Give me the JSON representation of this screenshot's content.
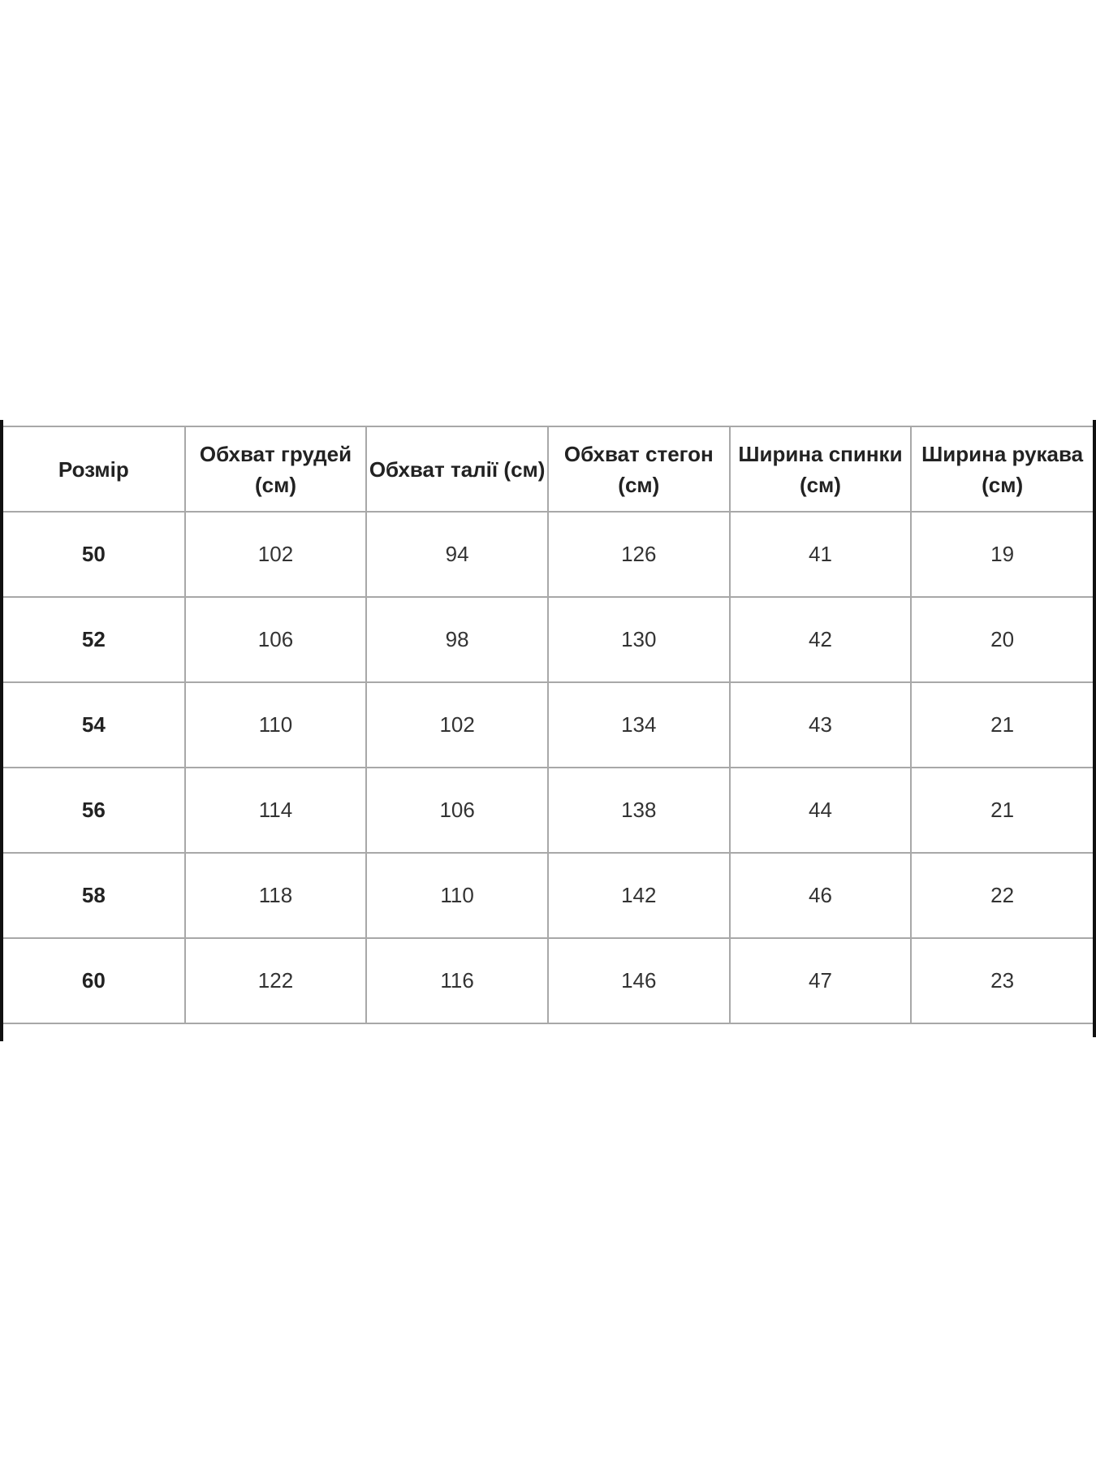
{
  "table": {
    "headers": [
      "Розмір",
      "Обхват грудей (см)",
      "Обхват талії (см)",
      "Обхват стегон (см)",
      "Ширина спинки (см)",
      "Ширина рукава (см)"
    ],
    "rows": [
      [
        "50",
        "102",
        "94",
        "126",
        "41",
        "19"
      ],
      [
        "52",
        "106",
        "98",
        "130",
        "42",
        "20"
      ],
      [
        "54",
        "110",
        "102",
        "134",
        "43",
        "21"
      ],
      [
        "56",
        "114",
        "106",
        "138",
        "44",
        "21"
      ],
      [
        "58",
        "118",
        "110",
        "142",
        "46",
        "22"
      ],
      [
        "60",
        "122",
        "116",
        "146",
        "47",
        "23"
      ]
    ]
  }
}
